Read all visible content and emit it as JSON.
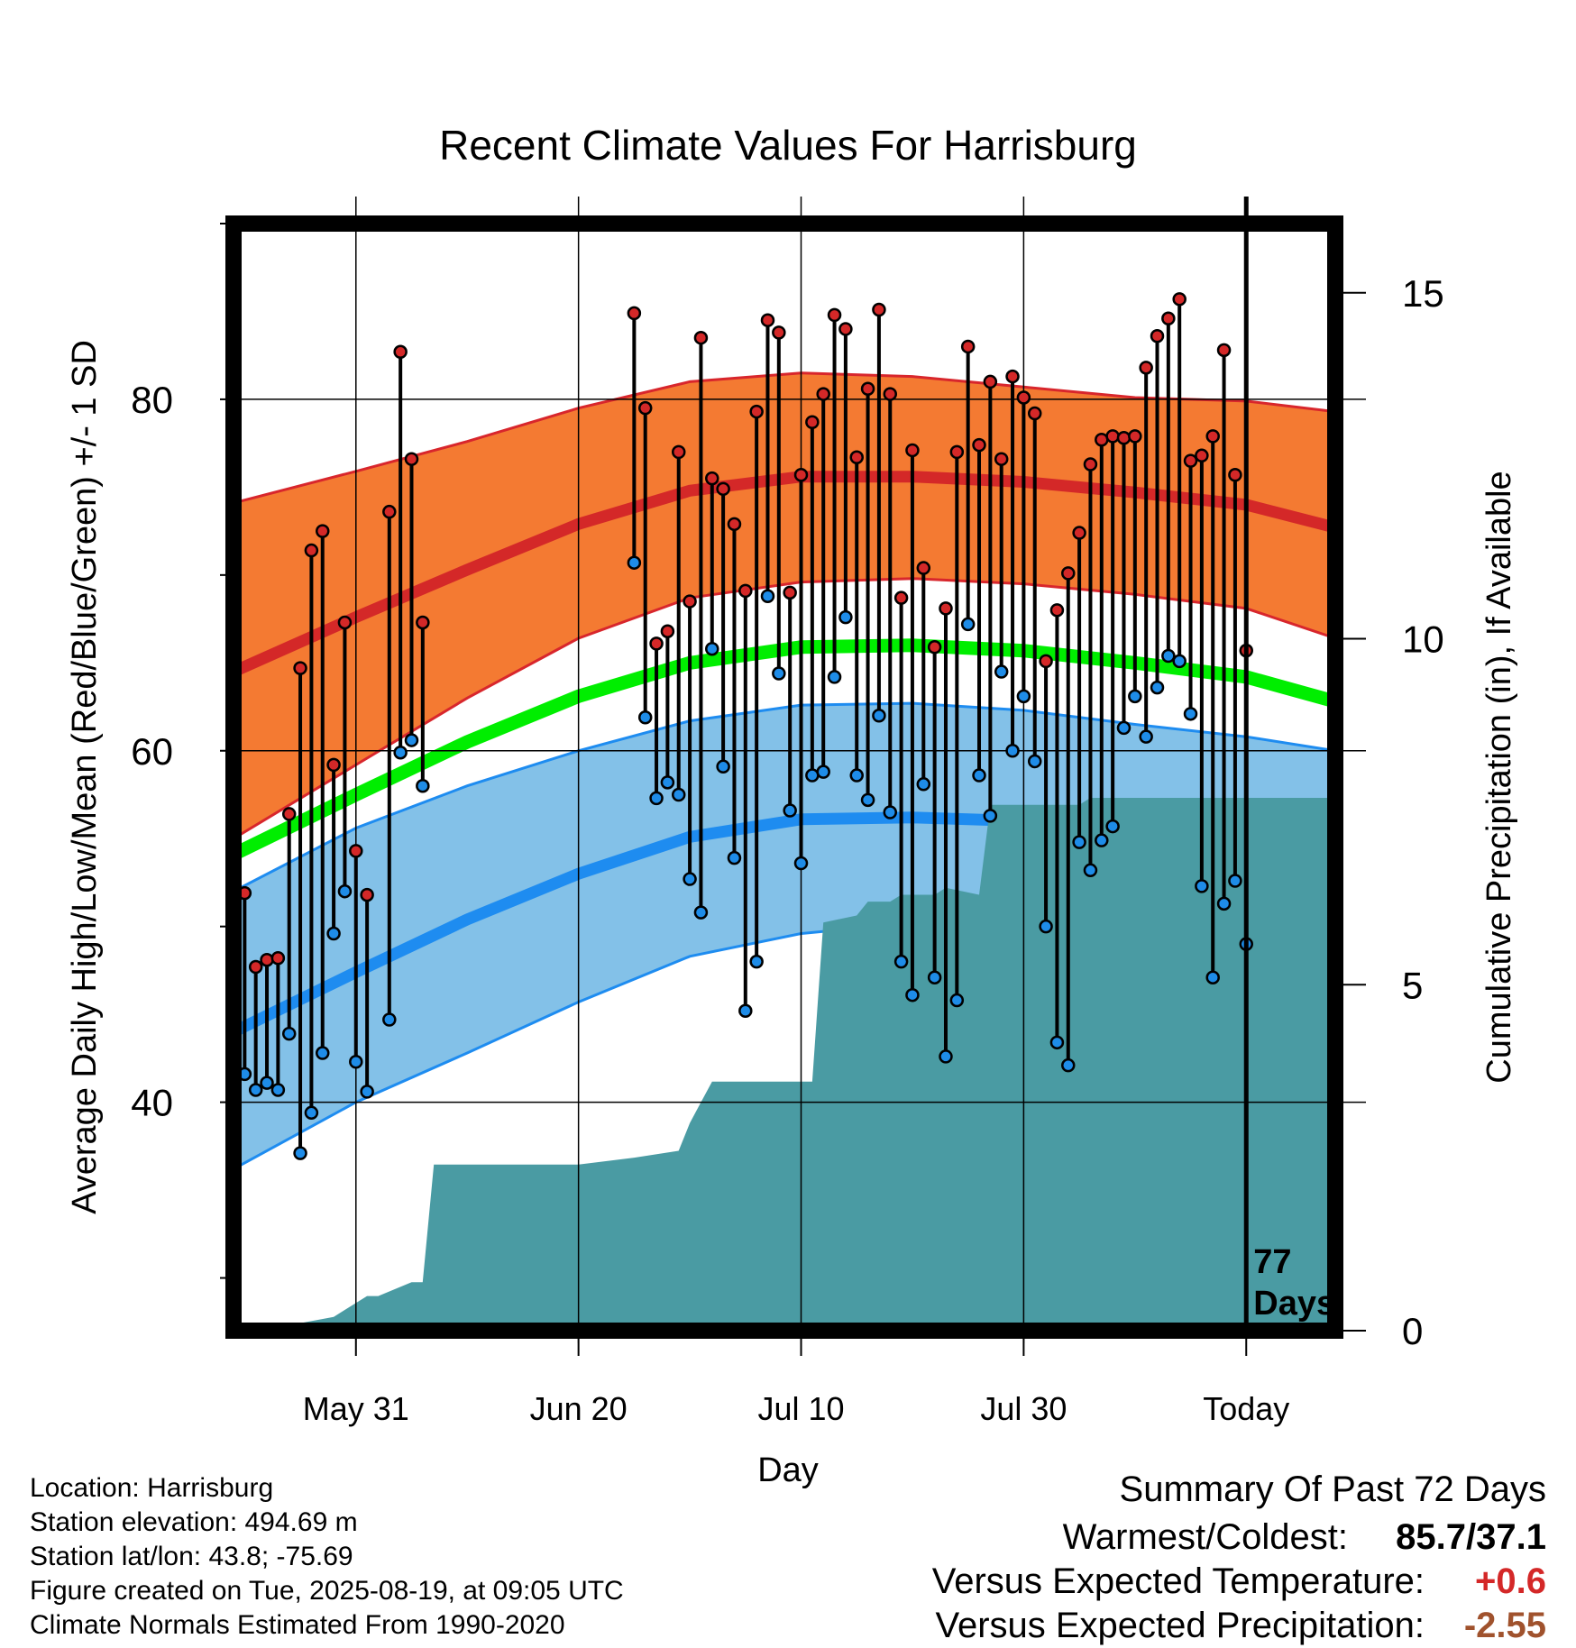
{
  "chart_data": {
    "type": "line",
    "title": "Recent Climate Values For Harrisburg",
    "xlabel": "Day",
    "ylabel_left": "Average Daily High/Low/Mean (Red/Blue/Green) +/- 1 SD",
    "ylabel_right": "Cumulative Precipitation (in), If Available",
    "xlim": [
      -11,
      88
    ],
    "ylim_left": [
      27,
      90
    ],
    "ylim_right": [
      0,
      16
    ],
    "x_ticks": [
      {
        "x": 0,
        "label": "May 31"
      },
      {
        "x": 20,
        "label": "Jun 20"
      },
      {
        "x": 40,
        "label": "Jul 10"
      },
      {
        "x": 60,
        "label": "Jul 30"
      },
      {
        "x": 80,
        "label": "Today"
      }
    ],
    "y_ticks_left": [
      40,
      60,
      80
    ],
    "y_minor_ticks_left": [
      30,
      50,
      70,
      90
    ],
    "y_ticks_right": [
      0,
      5,
      10,
      15
    ],
    "normals": {
      "x": [
        -11,
        0,
        10,
        20,
        30,
        40,
        50,
        60,
        70,
        80,
        88
      ],
      "mean_high": [
        64.5,
        67.6,
        70.3,
        72.9,
        74.8,
        75.6,
        75.6,
        75.3,
        74.7,
        74.0,
        72.7
      ],
      "high_sd_upper": [
        74.1,
        75.9,
        77.6,
        79.5,
        81.0,
        81.5,
        81.3,
        80.7,
        80.1,
        79.9,
        79.3
      ],
      "high_sd_lower": [
        55.0,
        59.2,
        63.0,
        66.4,
        68.7,
        69.6,
        69.8,
        69.5,
        68.9,
        68.1,
        66.4
      ],
      "mean_low": [
        44.0,
        47.4,
        50.4,
        53.0,
        55.1,
        56.1,
        56.2,
        56.0,
        55.3,
        54.3,
        52.9
      ],
      "low_sd_upper": [
        52.0,
        55.6,
        58.0,
        60.0,
        61.7,
        62.6,
        62.7,
        62.3,
        61.5,
        60.8,
        60.0
      ],
      "low_sd_lower": [
        36.2,
        40.0,
        42.8,
        45.7,
        48.3,
        49.6,
        50.2,
        50.2,
        49.3,
        47.9,
        46.3
      ],
      "mean": [
        54.1,
        57.5,
        60.5,
        63.1,
        65.0,
        65.9,
        66.0,
        65.7,
        65.0,
        64.2,
        62.8
      ]
    },
    "observed_high": [
      51.9,
      47.7,
      48.1,
      48.2,
      56.4,
      64.7,
      71.4,
      72.5,
      59.2,
      67.3,
      54.3,
      51.8,
      null,
      73.6,
      82.7,
      76.6,
      67.3,
      null,
      null,
      null,
      null,
      null,
      null,
      null,
      null,
      null,
      null,
      null,
      null,
      null,
      null,
      null,
      null,
      null,
      null,
      84.9,
      79.5,
      66.1,
      66.8,
      77.0,
      68.5,
      83.5,
      75.5,
      74.9,
      72.9,
      69.1,
      79.3,
      84.5,
      83.8,
      69.0,
      75.7,
      78.7,
      80.3,
      84.8,
      84.0,
      76.7,
      80.6,
      85.1,
      80.3,
      68.7,
      77.1,
      70.4,
      65.9,
      68.1,
      77.0,
      83.0,
      77.4,
      81.0,
      76.6,
      81.3,
      80.1,
      79.2,
      65.1,
      68.0,
      70.1,
      72.4,
      76.3,
      77.7,
      77.9,
      77.8,
      77.9,
      81.8,
      83.6,
      84.6,
      85.7,
      76.5,
      76.8,
      77.9,
      82.8,
      75.7,
      65.7
    ],
    "observed_low": [
      41.6,
      40.7,
      41.1,
      40.7,
      43.9,
      37.1,
      39.4,
      42.8,
      49.6,
      52.0,
      42.3,
      40.6,
      null,
      44.7,
      59.9,
      60.6,
      58.0,
      null,
      null,
      null,
      null,
      null,
      null,
      null,
      null,
      null,
      null,
      null,
      null,
      null,
      null,
      null,
      null,
      null,
      null,
      70.7,
      61.9,
      57.3,
      58.2,
      57.5,
      52.7,
      50.8,
      65.8,
      59.1,
      53.9,
      45.2,
      48.0,
      68.8,
      64.4,
      56.6,
      53.6,
      58.6,
      58.8,
      64.2,
      67.6,
      58.6,
      57.2,
      62.0,
      56.5,
      48.0,
      46.1,
      58.1,
      47.1,
      42.6,
      45.8,
      67.2,
      58.6,
      56.3,
      64.5,
      60.0,
      63.1,
      59.4,
      50.0,
      43.4,
      42.1,
      54.8,
      53.2,
      54.9,
      55.7,
      61.3,
      63.1,
      60.8,
      63.6,
      65.4,
      65.1,
      62.1,
      52.3,
      47.1,
      51.3,
      52.6,
      49.0
    ],
    "observed_x_start": -10,
    "precip_cumulative": {
      "x": [
        -11,
        -8,
        -7,
        -2,
        -1,
        1,
        2,
        5,
        6,
        7,
        8,
        20,
        25,
        29,
        30,
        31,
        32,
        33,
        39,
        41,
        42,
        45,
        46,
        48,
        49,
        52,
        53,
        56,
        57,
        59,
        60,
        65,
        66,
        69,
        70,
        88
      ],
      "values": [
        0.0,
        0.05,
        0.05,
        0.2,
        0.3,
        0.5,
        0.5,
        0.7,
        0.7,
        2.4,
        2.4,
        2.4,
        2.5,
        2.6,
        3.0,
        3.3,
        3.6,
        3.6,
        3.6,
        3.6,
        5.9,
        6.0,
        6.2,
        6.2,
        6.3,
        6.3,
        6.4,
        6.3,
        7.6,
        7.6,
        7.6,
        7.6,
        7.7,
        7.7,
        7.7,
        7.7
      ]
    },
    "today_x": 80,
    "today_label": "77\nDays",
    "colors": {
      "high_band": "#f47a32",
      "high_band_edge": "#d8262c",
      "high_mean": "#d42828",
      "low_band": "#83c1e8",
      "low_band_edge": "#1e8cf0",
      "low_mean": "#1e8cf0",
      "mean": "#00ee00",
      "precip": "#4a9ba3",
      "high_marker": "#d42828",
      "low_marker": "#1e8ce8"
    }
  },
  "footer": {
    "location": "Location: Harrisburg",
    "elevation": "Station elevation: 494.69 m",
    "latlon": "Station lat/lon: 43.8; -75.69",
    "created": "Figure created on Tue, 2025-08-19, at 09:05 UTC",
    "normals": "Climate Normals Estimated From 1990-2020"
  },
  "summary": {
    "heading": "Summary Of Past 72 Days",
    "warmest_coldest_label": "Warmest/Coldest:",
    "warmest_coldest_value": "85.7/37.1",
    "temp_label": "Versus Expected Temperature:",
    "temp_value": "+0.6",
    "temp_color": "#d42828",
    "precip_label": "Versus Expected Precipitation:",
    "precip_value": "-2.55",
    "precip_color": "#a0522d"
  }
}
